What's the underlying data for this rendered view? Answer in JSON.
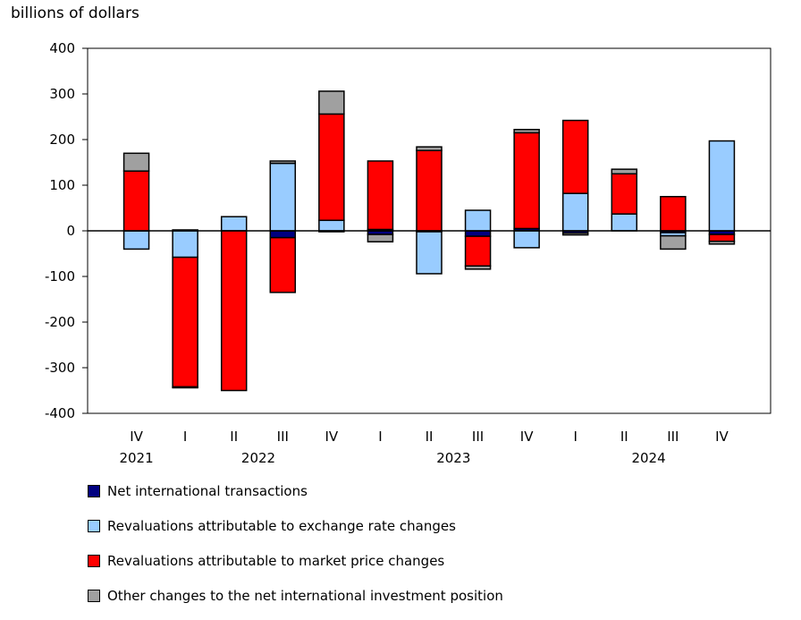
{
  "chart_data": {
    "type": "bar",
    "stacked": true,
    "ylabel": "billions of dollars",
    "ylim": [
      -400,
      400
    ],
    "yticks": [
      400,
      300,
      200,
      100,
      0,
      -100,
      -200,
      -300,
      -400
    ],
    "categories": [
      "IV",
      "I",
      "II",
      "III",
      "IV",
      "I",
      "II",
      "III",
      "IV",
      "I",
      "II",
      "III",
      "IV"
    ],
    "years": [
      {
        "label": "2021",
        "from": 0,
        "to": 0
      },
      {
        "label": "2022",
        "from": 1,
        "to": 4
      },
      {
        "label": "2023",
        "from": 5,
        "to": 8
      },
      {
        "label": "2024",
        "from": 9,
        "to": 12
      }
    ],
    "grid": false,
    "legend_position": "bottom",
    "series": [
      {
        "name": "Net international transactions",
        "color": "#000080",
        "values": [
          0,
          2,
          0,
          -15,
          -2,
          -8,
          -2,
          -12,
          5,
          -5,
          0,
          -4,
          -8
        ]
      },
      {
        "name": "Revaluations attributable to exchange rate changes",
        "color": "#99ccff",
        "values": [
          -40,
          -58,
          31,
          148,
          23,
          3,
          -92,
          45,
          -37,
          82,
          37,
          -7,
          197
        ]
      },
      {
        "name": "Revaluations attributable to market price changes",
        "color": "#ff0000",
        "values": [
          131,
          -284,
          -350,
          -120,
          233,
          150,
          176,
          -65,
          210,
          160,
          88,
          75,
          -15
        ]
      },
      {
        "name": "Other changes to the net international investment position",
        "color": "#a0a0a0",
        "values": [
          39,
          -2,
          0,
          5,
          50,
          -16,
          8,
          -7,
          7,
          -4,
          10,
          -29,
          -6
        ]
      }
    ]
  }
}
